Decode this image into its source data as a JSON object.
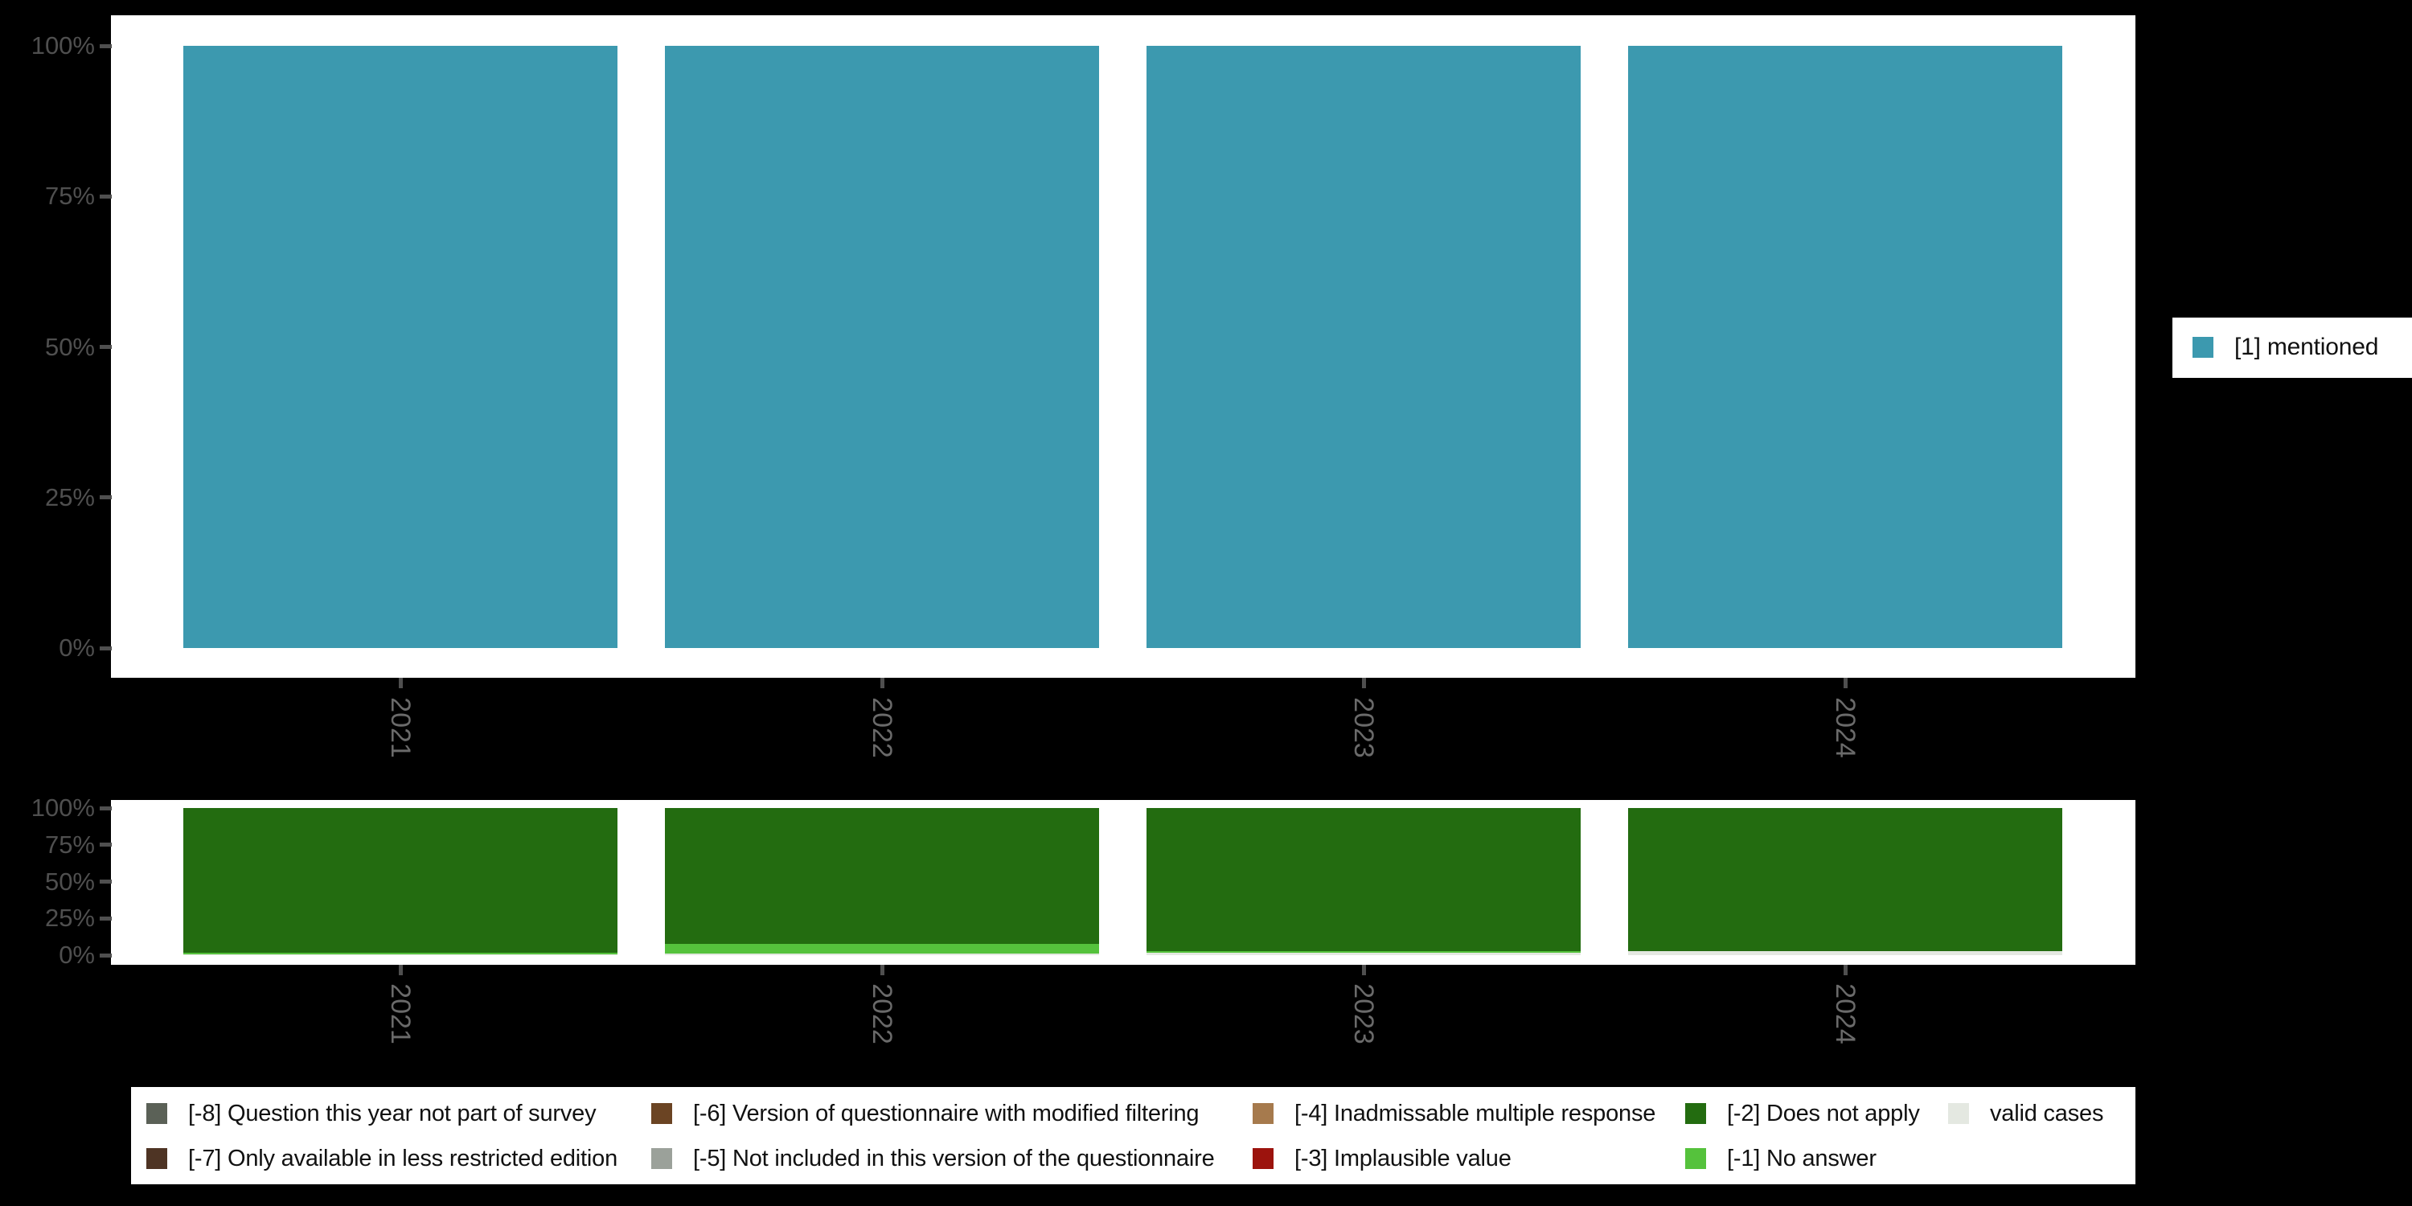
{
  "colors": {
    "background": "#000000",
    "panel": "#ffffff",
    "y_axis_text": "#4f4f4f",
    "x_axis_text": "#6a6a6a",
    "tick": "#4f4f4f",
    "legend_text": "#111111",
    "teal": "#3c99af",
    "dark_green": "#236c10",
    "light_green": "#55c23c",
    "valid_gray": "#e4e8e1"
  },
  "chart_data": [
    {
      "id": "valid-responses-by-year",
      "type": "bar",
      "stacked": true,
      "title": "",
      "xlabel": "",
      "ylabel": "",
      "grid": false,
      "ylim": [
        0,
        100
      ],
      "ytick_labels": [
        "0%",
        "25%",
        "50%",
        "75%",
        "100%"
      ],
      "categories": [
        "2021",
        "2022",
        "2023",
        "2024"
      ],
      "series": [
        {
          "name": "[1] mentioned",
          "color": "#3c99af",
          "values": [
            100,
            100,
            100,
            100
          ]
        }
      ],
      "legend_position": "right"
    },
    {
      "id": "missing-values-by-year",
      "type": "bar",
      "stacked": true,
      "title": "",
      "xlabel": "",
      "ylabel": "",
      "grid": false,
      "ylim": [
        0,
        100
      ],
      "ytick_labels": [
        "0%",
        "25%",
        "50%",
        "75%",
        "100%"
      ],
      "categories": [
        "2021",
        "2022",
        "2023",
        "2024"
      ],
      "series": [
        {
          "name": "[-2] Does not apply",
          "color": "#236c10",
          "values": [
            98.5,
            92.3,
            97.5,
            97.5
          ]
        },
        {
          "name": "[-1] No answer",
          "color": "#55c23c",
          "values": [
            0.7,
            6.6,
            0.8,
            0
          ]
        },
        {
          "name": "valid cases",
          "color": "#e4e8e1",
          "values": [
            0.8,
            1.1,
            1.7,
            2.5
          ]
        }
      ],
      "legend_position": "bottom"
    }
  ],
  "right_legend": {
    "items": [
      {
        "label": "[1] mentioned",
        "color": "#3c99af"
      }
    ]
  },
  "bottom_legend": {
    "columns": [
      {
        "items": [
          {
            "label": "[-8] Question this year not part of survey",
            "color": "#5b6157"
          },
          {
            "label": "[-7] Only available in less restricted edition",
            "color": "#4e3424"
          }
        ]
      },
      {
        "items": [
          {
            "label": "[-6] Version of questionnaire with modified filtering",
            "color": "#6b4423"
          },
          {
            "label": "[-5] Not included in this version of the questionnaire",
            "color": "#9ba19a"
          }
        ]
      },
      {
        "items": [
          {
            "label": "[-4] Inadmissable multiple response",
            "color": "#a67a4d"
          },
          {
            "label": "[-3] Implausible value",
            "color": "#9c130d"
          }
        ]
      },
      {
        "items": [
          {
            "label": "[-2] Does not apply",
            "color": "#236c10"
          },
          {
            "label": "[-1] No answer",
            "color": "#55c23c"
          }
        ]
      },
      {
        "items": [
          {
            "label": "valid cases",
            "color": "#e4e8e1"
          }
        ]
      }
    ]
  }
}
